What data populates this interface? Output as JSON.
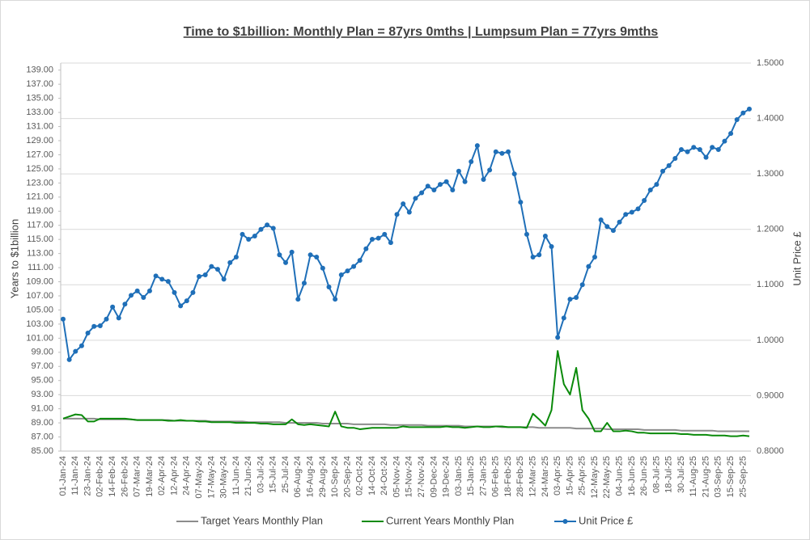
{
  "chart_data": {
    "type": "line",
    "title": "Time to $1billion: Monthly Plan = 87yrs 0mths | Lumpsum Plan = 77yrs 9mths",
    "y_label": "Years to $1billion",
    "y2_label": "Unit Price £",
    "categories": [
      "01-Jan-24",
      null,
      "11-Jan-24",
      null,
      "23-Jan-24",
      null,
      "02-Feb-24",
      null,
      "14-Feb-24",
      null,
      "26-Feb-24",
      null,
      "07-Mar-24",
      null,
      "19-Mar-24",
      null,
      "02-Apr-24",
      null,
      "12-Apr-24",
      null,
      "24-Apr-24",
      null,
      "07-May-24",
      null,
      "17-May-24",
      null,
      "30-May-24",
      null,
      "11-Jun-24",
      null,
      "21-Jun-24",
      null,
      "03-Jul-24",
      null,
      "15-Jul-24",
      null,
      "25-Jul-24",
      null,
      "06-Aug-24",
      null,
      "16-Aug-24",
      null,
      "29-Aug-24",
      null,
      "10-Sep-24",
      null,
      "20-Sep-24",
      null,
      "02-Oct-24",
      null,
      "14-Oct-24",
      null,
      "24-Oct-24",
      null,
      "05-Nov-24",
      null,
      "15-Nov-24",
      null,
      "27-Nov-24",
      null,
      "09-Dec-24",
      null,
      "19-Dec-24",
      null,
      "03-Jan-25",
      null,
      "15-Jan-25",
      null,
      "27-Jan-25",
      null,
      "06-Feb-25",
      null,
      "18-Feb-25",
      null,
      "28-Feb-25",
      null,
      "12-Mar-25",
      null,
      "24-Mar-25",
      null,
      "03-Apr-25",
      null,
      "15-Apr-25",
      null,
      "25-Apr-25",
      null,
      "12-May-25",
      null,
      "22-May-25",
      null,
      "04-Jun-25",
      null,
      "16-Jun-25",
      null,
      "26-Jun-25",
      null,
      "08-Jul-25",
      null,
      "18-Jul-25",
      null,
      "30-Jul-25",
      null,
      "11-Aug-25",
      null,
      "21-Aug-25",
      null,
      "03-Sep-25",
      null,
      "15-Sep-25",
      null,
      "25-Sep-25",
      null
    ],
    "series": [
      {
        "name": "Target Years Monthly Plan",
        "color": "#8c8c8c",
        "axis": "y",
        "marker": false,
        "values": [
          89.6,
          89.6,
          89.6,
          89.6,
          89.6,
          89.6,
          89.5,
          89.5,
          89.5,
          89.5,
          89.5,
          89.5,
          89.4,
          89.4,
          89.4,
          89.4,
          89.4,
          89.4,
          89.3,
          89.3,
          89.3,
          89.3,
          89.3,
          89.3,
          89.2,
          89.2,
          89.2,
          89.2,
          89.2,
          89.2,
          89.1,
          89.1,
          89.1,
          89.1,
          89.1,
          89.1,
          89.0,
          89.0,
          89.0,
          89.0,
          89.0,
          89.0,
          88.9,
          88.9,
          88.9,
          88.9,
          88.9,
          88.8,
          88.8,
          88.8,
          88.8,
          88.8,
          88.8,
          88.7,
          88.7,
          88.7,
          88.7,
          88.7,
          88.7,
          88.6,
          88.6,
          88.6,
          88.6,
          88.6,
          88.6,
          88.5,
          88.5,
          88.5,
          88.5,
          88.5,
          88.5,
          88.4,
          88.4,
          88.4,
          88.4,
          88.4,
          88.4,
          88.3,
          88.3,
          88.3,
          88.3,
          88.3,
          88.3,
          88.2,
          88.2,
          88.2,
          88.2,
          88.2,
          88.1,
          88.1,
          88.1,
          88.1,
          88.1,
          88.1,
          88.0,
          88.0,
          88.0,
          88.0,
          88.0,
          88.0,
          87.9,
          87.9,
          87.9,
          87.9,
          87.9,
          87.9,
          87.8,
          87.8,
          87.8,
          87.8,
          87.8,
          87.8
        ]
      },
      {
        "name": "Current Years Monthly Plan",
        "color": "#0a8a0a",
        "axis": "y",
        "marker": false,
        "values": [
          89.6,
          89.9,
          90.2,
          90.1,
          89.2,
          89.2,
          89.6,
          89.6,
          89.6,
          89.6,
          89.6,
          89.5,
          89.4,
          89.4,
          89.4,
          89.4,
          89.4,
          89.3,
          89.3,
          89.4,
          89.3,
          89.3,
          89.2,
          89.2,
          89.1,
          89.1,
          89.1,
          89.1,
          89.0,
          89.0,
          89.0,
          89.0,
          88.9,
          88.9,
          88.8,
          88.8,
          88.8,
          89.5,
          88.8,
          88.7,
          88.8,
          88.7,
          88.6,
          88.5,
          90.6,
          88.5,
          88.3,
          88.3,
          88.1,
          88.2,
          88.3,
          88.3,
          88.3,
          88.3,
          88.3,
          88.5,
          88.4,
          88.4,
          88.4,
          88.4,
          88.4,
          88.4,
          88.5,
          88.4,
          88.4,
          88.3,
          88.4,
          88.5,
          88.4,
          88.4,
          88.5,
          88.5,
          88.4,
          88.4,
          88.4,
          88.3,
          90.3,
          89.5,
          88.6,
          90.8,
          99.2,
          94.5,
          93.0,
          96.8,
          90.8,
          89.6,
          87.8,
          87.8,
          89.0,
          87.8,
          87.8,
          87.9,
          87.8,
          87.6,
          87.6,
          87.5,
          87.5,
          87.5,
          87.5,
          87.5,
          87.4,
          87.4,
          87.3,
          87.3,
          87.3,
          87.2,
          87.2,
          87.2,
          87.1,
          87.1,
          87.2,
          87.1
        ]
      },
      {
        "name": "Unit Price £",
        "color": "#1f6fb8",
        "axis": "y2",
        "marker": true,
        "values": [
          1.038,
          0.965,
          0.98,
          0.99,
          1.013,
          1.025,
          1.026,
          1.038,
          1.06,
          1.04,
          1.065,
          1.081,
          1.089,
          1.077,
          1.089,
          1.116,
          1.11,
          1.106,
          1.086,
          1.062,
          1.071,
          1.086,
          1.115,
          1.118,
          1.133,
          1.128,
          1.11,
          1.14,
          1.15,
          1.191,
          1.182,
          1.188,
          1.2,
          1.208,
          1.202,
          1.154,
          1.14,
          1.159,
          1.074,
          1.103,
          1.154,
          1.15,
          1.13,
          1.096,
          1.074,
          1.118,
          1.125,
          1.133,
          1.144,
          1.165,
          1.182,
          1.184,
          1.191,
          1.176,
          1.227,
          1.246,
          1.231,
          1.256,
          1.266,
          1.278,
          1.271,
          1.281,
          1.286,
          1.271,
          1.305,
          1.286,
          1.322,
          1.351,
          1.29,
          1.307,
          1.34,
          1.337,
          1.34,
          1.3,
          1.249,
          1.191,
          1.15,
          1.154,
          1.188,
          1.169,
          1.005,
          1.04,
          1.074,
          1.077,
          1.1,
          1.133,
          1.15,
          1.217,
          1.205,
          1.198,
          1.213,
          1.227,
          1.231,
          1.237,
          1.252,
          1.271,
          1.281,
          1.305,
          1.315,
          1.328,
          1.344,
          1.34,
          1.348,
          1.344,
          1.33,
          1.348,
          1.344,
          1.359,
          1.373,
          1.398,
          1.41,
          1.417
        ]
      }
    ],
    "ylim": [
      85,
      140
    ],
    "yticks": [
      {
        "value": 85,
        "label": "85.00"
      },
      {
        "value": 87,
        "label": "87.00"
      },
      {
        "value": 89,
        "label": "89.00"
      },
      {
        "value": 91,
        "label": "91.00"
      },
      {
        "value": 93,
        "label": "93.00"
      },
      {
        "value": 95,
        "label": "95.00"
      },
      {
        "value": 97,
        "label": "97.00"
      },
      {
        "value": 99,
        "label": "99.00"
      },
      {
        "value": 101,
        "label": "101.00"
      },
      {
        "value": 103,
        "label": "103.00"
      },
      {
        "value": 105,
        "label": "105.00"
      },
      {
        "value": 107,
        "label": "107.00"
      },
      {
        "value": 109,
        "label": "109.00"
      },
      {
        "value": 111,
        "label": "111.00"
      },
      {
        "value": 113,
        "label": "113.00"
      },
      {
        "value": 115,
        "label": "115.00"
      },
      {
        "value": 117,
        "label": "117.00"
      },
      {
        "value": 119,
        "label": "119.00"
      },
      {
        "value": 121,
        "label": "121.00"
      },
      {
        "value": 123,
        "label": "123.00"
      },
      {
        "value": 125,
        "label": "125.00"
      },
      {
        "value": 127,
        "label": "127.00"
      },
      {
        "value": 129,
        "label": "129.00"
      },
      {
        "value": 131,
        "label": "131.00"
      },
      {
        "value": 133,
        "label": "133.00"
      },
      {
        "value": 135,
        "label": "135.00"
      },
      {
        "value": 137,
        "label": "137.00"
      },
      {
        "value": 139,
        "label": "139.00"
      }
    ],
    "y2lim": [
      0.8,
      1.5
    ],
    "y2ticks": [
      {
        "value": 0.8,
        "label": "0.8000"
      },
      {
        "value": 0.9,
        "label": "0.9000"
      },
      {
        "value": 1.0,
        "label": "1.0000"
      },
      {
        "value": 1.1,
        "label": "1.1000"
      },
      {
        "value": 1.2,
        "label": "1.2000"
      },
      {
        "value": 1.3,
        "label": "1.3000"
      },
      {
        "value": 1.4,
        "label": "1.4000"
      },
      {
        "value": 1.5,
        "label": "1.5000"
      }
    ],
    "grid": true,
    "legend": "bottom"
  }
}
